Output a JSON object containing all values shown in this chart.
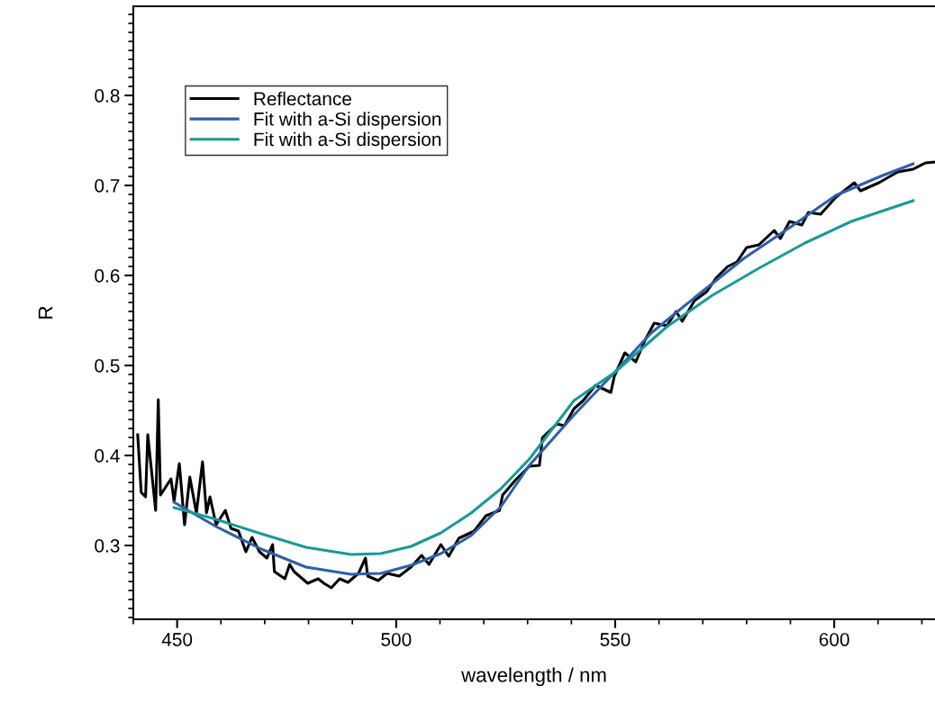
{
  "chart_data": {
    "type": "line",
    "xlabel": "wavelength / nm",
    "ylabel": "R",
    "xlim": [
      440,
      623
    ],
    "ylim": [
      0.218,
      0.899
    ],
    "xticks": [
      450,
      500,
      550,
      600
    ],
    "yticks": [
      0.3,
      0.4,
      0.5,
      0.6,
      0.7,
      0.8
    ],
    "legend": "top left",
    "grid": false,
    "marker": "none",
    "line_style": "solid",
    "series": [
      {
        "name": "Reflectance",
        "color": "#000000",
        "x": [
          441,
          441.8,
          442.8,
          443.3,
          445.1,
          445.7,
          446.2,
          448.6,
          449.3,
          450.5,
          451.7,
          452.9,
          454.4,
          455.8,
          456.7,
          457.5,
          458.9,
          461,
          462.3,
          464,
          465.7,
          467.1,
          468.8,
          470.5,
          471.8,
          472.2,
          474.6,
          475.7,
          476.7,
          479.8,
          482.2,
          483.5,
          485.2,
          487.1,
          489,
          491.4,
          493,
          493.5,
          495.9,
          497.9,
          500.7,
          503.4,
          505.8,
          507.5,
          510.2,
          512,
          514.3,
          517.8,
          520.5,
          523.6,
          524.3,
          527.3,
          530.4,
          532.7,
          533.4,
          536.7,
          538.4,
          540.6,
          542.7,
          545.5,
          549,
          549.8,
          552.2,
          554.7,
          556.8,
          558.9,
          561.8,
          563.9,
          565.3,
          568.1,
          570.9,
          573,
          575.7,
          577.8,
          580,
          582.8,
          586.3,
          587.7,
          589.8,
          592.6,
          594.1,
          596.9,
          600.4,
          604.6,
          606,
          610.2,
          614.5,
          618,
          620.8,
          623
        ],
        "values": [
          0.423,
          0.359,
          0.354,
          0.423,
          0.339,
          0.462,
          0.356,
          0.374,
          0.349,
          0.391,
          0.323,
          0.376,
          0.336,
          0.393,
          0.336,
          0.354,
          0.323,
          0.339,
          0.319,
          0.316,
          0.293,
          0.309,
          0.293,
          0.286,
          0.301,
          0.271,
          0.263,
          0.279,
          0.271,
          0.258,
          0.263,
          0.258,
          0.253,
          0.263,
          0.259,
          0.269,
          0.286,
          0.266,
          0.261,
          0.269,
          0.266,
          0.276,
          0.289,
          0.279,
          0.301,
          0.288,
          0.308,
          0.316,
          0.333,
          0.339,
          0.356,
          0.373,
          0.388,
          0.389,
          0.42,
          0.435,
          0.433,
          0.452,
          0.461,
          0.478,
          0.47,
          0.488,
          0.514,
          0.504,
          0.528,
          0.547,
          0.544,
          0.56,
          0.549,
          0.572,
          0.582,
          0.597,
          0.61,
          0.615,
          0.631,
          0.634,
          0.65,
          0.641,
          0.66,
          0.656,
          0.67,
          0.668,
          0.687,
          0.703,
          0.694,
          0.703,
          0.715,
          0.718,
          0.725,
          0.726
        ]
      },
      {
        "name": "Fit with a-Si dispersion",
        "color": "#2e5fa8",
        "x": [
          449.3,
          458.9,
          469.2,
          479.4,
          489.7,
          496.5,
          503.4,
          510.2,
          517.1,
          523.9,
          530.4,
          540.6,
          549.8,
          558.2,
          568.8,
          579.4,
          589.8,
          600.4,
          611,
          618
        ],
        "values": [
          0.348,
          0.321,
          0.296,
          0.276,
          0.268,
          0.269,
          0.278,
          0.291,
          0.311,
          0.343,
          0.389,
          0.445,
          0.492,
          0.536,
          0.578,
          0.619,
          0.653,
          0.689,
          0.711,
          0.724
        ]
      },
      {
        "name": "Fit with a-Si dispersion",
        "color": "#1a9a96",
        "x": [
          449.3,
          458.9,
          469.2,
          479.4,
          489.7,
          496.5,
          503.4,
          510.2,
          517.1,
          523.9,
          530.4,
          540.6,
          549.8,
          561.8,
          572.2,
          582.8,
          593.3,
          603.9,
          618
        ],
        "values": [
          0.342,
          0.329,
          0.313,
          0.298,
          0.29,
          0.291,
          0.299,
          0.314,
          0.336,
          0.363,
          0.396,
          0.461,
          0.492,
          0.543,
          0.578,
          0.608,
          0.636,
          0.66,
          0.683
        ]
      }
    ]
  }
}
